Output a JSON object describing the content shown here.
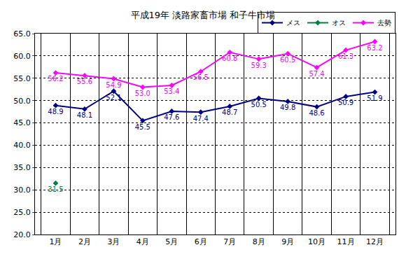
{
  "chart_data": {
    "type": "line",
    "title": "平成19年 淡路家畜市場 和子牛市場",
    "categories": [
      "1月",
      "2月",
      "3月",
      "4月",
      "5月",
      "6月",
      "7月",
      "8月",
      "9月",
      "10月",
      "11月",
      "12月"
    ],
    "series": [
      {
        "name": "メス",
        "color": "#000080",
        "values": [
          48.9,
          48.1,
          52.1,
          45.5,
          47.6,
          47.4,
          48.7,
          50.5,
          49.8,
          48.6,
          50.9,
          51.9
        ],
        "value_labels": [
          "48.9",
          "48.1",
          "52.1",
          "45.5",
          "47.6",
          "47.4",
          "48.7",
          "50.5",
          "49.8",
          "48.6",
          "50.9",
          "51.9"
        ]
      },
      {
        "name": "オス",
        "color": "#008040",
        "values": [
          31.5,
          null,
          null,
          null,
          null,
          null,
          null,
          null,
          null,
          null,
          null,
          null
        ],
        "value_labels": [
          "31.5",
          null,
          null,
          null,
          null,
          null,
          null,
          null,
          null,
          null,
          null,
          null
        ]
      },
      {
        "name": "去勢",
        "color": "#ff00ff",
        "values": [
          56.2,
          55.6,
          54.9,
          53.0,
          53.4,
          56.5,
          60.8,
          59.3,
          60.5,
          57.4,
          61.3,
          63.2
        ],
        "value_labels": [
          "56.2",
          "55.6",
          "54.9",
          "53.0",
          "53.4",
          "56.5",
          "60.8",
          "59.3",
          "60.5",
          "57.4",
          "61.3",
          "63.2"
        ]
      }
    ],
    "ylim": [
      20,
      65
    ],
    "yticks": [
      {
        "value": 20,
        "label": "20.0"
      },
      {
        "value": 25,
        "label": "25.0"
      },
      {
        "value": 30,
        "label": "30.0"
      },
      {
        "value": 35,
        "label": "35.0"
      },
      {
        "value": 40,
        "label": "40.0"
      },
      {
        "value": 45,
        "label": "45.0"
      },
      {
        "value": 50,
        "label": "50.0"
      },
      {
        "value": 55,
        "label": "55.0"
      },
      {
        "value": 60,
        "label": "60.0"
      },
      {
        "value": 65,
        "label": "65.0"
      }
    ],
    "grid": true,
    "legend": "top right",
    "data_labels": true,
    "marker": "diamond"
  }
}
